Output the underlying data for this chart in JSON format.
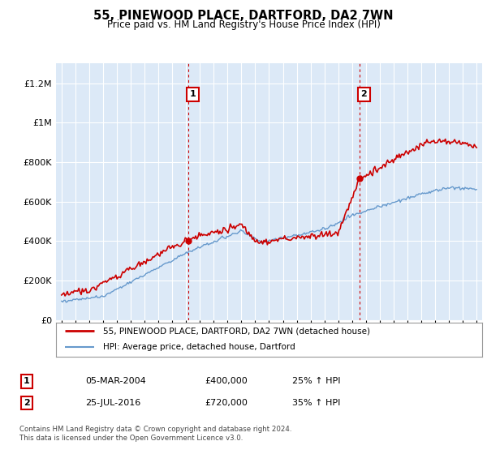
{
  "title": "55, PINEWOOD PLACE, DARTFORD, DA2 7WN",
  "subtitle": "Price paid vs. HM Land Registry's House Price Index (HPI)",
  "background_color": "#ffffff",
  "plot_bg_color": "#dce9f7",
  "grid_color": "#ffffff",
  "ylabel_ticks": [
    "£0",
    "£200K",
    "£400K",
    "£600K",
    "£800K",
    "£1M",
    "£1.2M"
  ],
  "ytick_values": [
    0,
    200000,
    400000,
    600000,
    800000,
    1000000,
    1200000
  ],
  "ylim": [
    0,
    1300000
  ],
  "xlim_start": 1994.6,
  "xlim_end": 2025.4,
  "sale1_x": 2004.18,
  "sale1_y": 400000,
  "sale2_x": 2016.56,
  "sale2_y": 720000,
  "legend_line1": "55, PINEWOOD PLACE, DARTFORD, DA2 7WN (detached house)",
  "legend_line2": "HPI: Average price, detached house, Dartford",
  "table_row1": [
    "1",
    "05-MAR-2004",
    "£400,000",
    "25% ↑ HPI"
  ],
  "table_row2": [
    "2",
    "25-JUL-2016",
    "£720,000",
    "35% ↑ HPI"
  ],
  "footer": "Contains HM Land Registry data © Crown copyright and database right 2024.\nThis data is licensed under the Open Government Licence v3.0.",
  "red_color": "#cc0000",
  "blue_color": "#6699cc"
}
